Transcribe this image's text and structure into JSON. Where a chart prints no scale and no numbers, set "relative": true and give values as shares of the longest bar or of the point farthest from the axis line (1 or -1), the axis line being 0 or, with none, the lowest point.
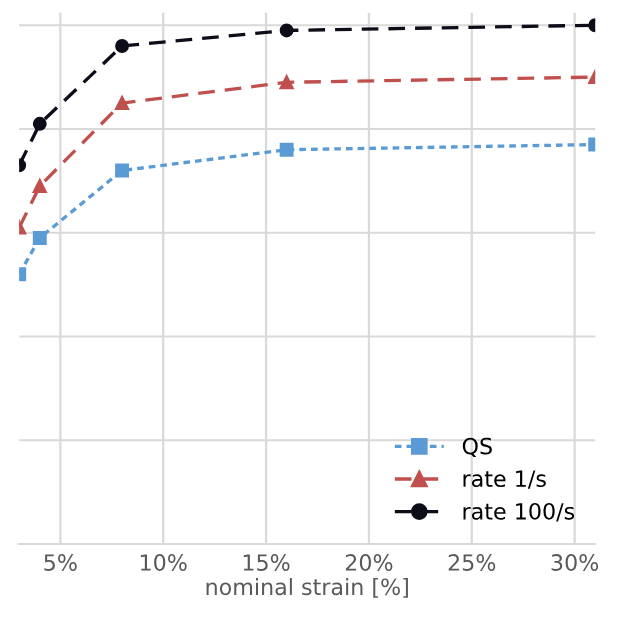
{
  "chart_data": {
    "type": "line",
    "xlabel": "nominal strain [%]",
    "relative": true,
    "x": [
      3,
      4,
      8,
      16,
      31
    ],
    "xlim": [
      3,
      31
    ],
    "xticks": [
      {
        "value": 5,
        "label": "5%"
      },
      {
        "value": 10,
        "label": "10%"
      },
      {
        "value": 15,
        "label": "15%"
      },
      {
        "value": 20,
        "label": "20%"
      },
      {
        "value": 25,
        "label": "25%"
      },
      {
        "value": 30,
        "label": "30%"
      }
    ],
    "series": [
      {
        "name": "QS",
        "color": "#5b9bd5",
        "marker": "square",
        "line_style": "dotted",
        "values": [
          0.52,
          0.59,
          0.72,
          0.76,
          0.77
        ]
      },
      {
        "name": "rate 1/s",
        "color": "#c0504d",
        "marker": "triangle",
        "line_style": "dashed",
        "values": [
          0.61,
          0.69,
          0.85,
          0.89,
          0.9
        ]
      },
      {
        "name": "rate 100/s",
        "color": "#0d0d1a",
        "marker": "circle",
        "line_style": "dashed",
        "values": [
          0.73,
          0.81,
          0.96,
          0.99,
          1.0
        ]
      }
    ],
    "grid": true,
    "legend": "bottom right"
  }
}
